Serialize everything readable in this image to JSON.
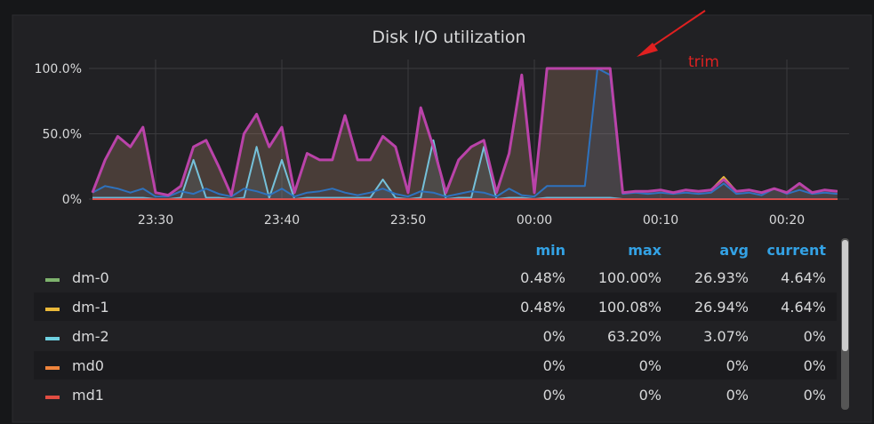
{
  "chart_data": {
    "type": "line",
    "title": "Disk I/O utilization",
    "annotation": "trim",
    "categories": [
      null,
      null,
      null,
      null,
      null,
      "23:30",
      null,
      null,
      null,
      null,
      null,
      null,
      null,
      null,
      null,
      "23:40",
      null,
      null,
      null,
      null,
      null,
      null,
      null,
      null,
      null,
      "23:50",
      null,
      null,
      null,
      null,
      null,
      null,
      null,
      null,
      null,
      "00:00",
      null,
      null,
      null,
      null,
      null,
      null,
      null,
      null,
      null,
      "00:10",
      null,
      null,
      null,
      null,
      null,
      null,
      null,
      null,
      null,
      "00:20",
      null,
      null,
      null,
      null
    ],
    "ylim": [
      0,
      100
    ],
    "yticks": [
      {
        "value": 0,
        "label": "0%"
      },
      {
        "value": 50,
        "label": "50.0%"
      },
      {
        "value": 100,
        "label": "100.0%"
      }
    ],
    "grid": true,
    "legend_columns": [
      "min",
      "max",
      "avg",
      "current"
    ],
    "series": [
      {
        "name": "dm-0",
        "color": "#7eb26d",
        "stats": [
          "0.48%",
          "100.00%",
          "26.93%",
          "4.64%"
        ],
        "values": [
          5,
          30,
          48,
          40,
          55,
          5,
          3,
          10,
          40,
          45,
          25,
          3,
          50,
          65,
          40,
          55,
          5,
          35,
          30,
          30,
          64,
          30,
          30,
          48,
          40,
          5,
          70,
          40,
          5,
          30,
          40,
          45,
          5,
          35,
          95,
          5,
          100,
          100,
          100,
          100,
          100,
          100,
          5,
          6,
          6,
          7,
          5,
          7,
          6,
          7,
          15,
          6,
          7,
          5,
          8,
          5,
          12,
          5,
          7,
          6
        ]
      },
      {
        "name": "dm-1",
        "color": "#eab839",
        "stats": [
          "0.48%",
          "100.08%",
          "26.94%",
          "4.64%"
        ],
        "values": [
          5,
          30,
          48,
          40,
          55,
          5,
          3,
          10,
          40,
          45,
          25,
          3,
          50,
          65,
          40,
          55,
          5,
          35,
          30,
          30,
          64,
          30,
          30,
          48,
          40,
          5,
          70,
          40,
          5,
          30,
          40,
          45,
          5,
          35,
          95,
          5,
          100,
          100,
          100,
          100,
          100,
          100,
          5,
          6,
          6,
          7,
          5,
          7,
          6,
          7,
          17,
          6,
          7,
          5,
          8,
          5,
          12,
          5,
          7,
          6
        ]
      },
      {
        "name": "dm-2",
        "color": "#6ed0e0",
        "stats": [
          "0%",
          "63.20%",
          "3.07%",
          "0%"
        ],
        "values": [
          1,
          1,
          1,
          1,
          1,
          0,
          0,
          1,
          30,
          1,
          1,
          0,
          1,
          40,
          1,
          30,
          0,
          1,
          1,
          1,
          1,
          1,
          1,
          15,
          1,
          0,
          1,
          45,
          0,
          1,
          1,
          40,
          0,
          1,
          1,
          0,
          1,
          1,
          1,
          1,
          1,
          1,
          0,
          0,
          0,
          0,
          0,
          0,
          0,
          0,
          0,
          0,
          0,
          0,
          0,
          0,
          0,
          0,
          0,
          0
        ]
      },
      {
        "name": "md0",
        "color": "#ef843c",
        "stats": [
          "0%",
          "0%",
          "0%",
          "0%"
        ],
        "values": [
          0,
          0,
          0,
          0,
          0,
          0,
          0,
          0,
          0,
          0,
          0,
          0,
          0,
          0,
          0,
          0,
          0,
          0,
          0,
          0,
          0,
          0,
          0,
          0,
          0,
          0,
          0,
          0,
          0,
          0,
          0,
          0,
          0,
          0,
          0,
          0,
          0,
          0,
          0,
          0,
          0,
          0,
          0,
          0,
          0,
          0,
          0,
          0,
          0,
          0,
          0,
          0,
          0,
          0,
          0,
          0,
          0,
          0,
          0,
          0
        ]
      },
      {
        "name": "md1",
        "color": "#e24d42",
        "stats": [
          "0%",
          "0%",
          "0%",
          "0%"
        ],
        "values": [
          0,
          0,
          0,
          0,
          0,
          0,
          0,
          0,
          0,
          0,
          0,
          0,
          0,
          0,
          0,
          0,
          0,
          0,
          0,
          0,
          0,
          0,
          0,
          0,
          0,
          0,
          0,
          0,
          0,
          0,
          0,
          0,
          0,
          0,
          0,
          0,
          0,
          0,
          0,
          0,
          0,
          0,
          0,
          0,
          0,
          0,
          0,
          0,
          0,
          0,
          0,
          0,
          0,
          0,
          0,
          0,
          0,
          0,
          0,
          0
        ]
      },
      {
        "color": "#1f78c1",
        "values": [
          5,
          10,
          8,
          5,
          8,
          2,
          2,
          6,
          4,
          8,
          4,
          2,
          8,
          6,
          3,
          8,
          2,
          5,
          6,
          8,
          5,
          3,
          5,
          8,
          4,
          2,
          6,
          5,
          2,
          4,
          6,
          5,
          2,
          8,
          3,
          2,
          10,
          10,
          10,
          10,
          100,
          95,
          4,
          5,
          4,
          5,
          4,
          5,
          4,
          5,
          12,
          4,
          5,
          3,
          8,
          4,
          7,
          4,
          5,
          4
        ]
      },
      {
        "color": "#ba43a9",
        "values": [
          5,
          30,
          48,
          40,
          55,
          5,
          3,
          10,
          40,
          45,
          25,
          3,
          50,
          65,
          40,
          55,
          5,
          35,
          30,
          30,
          64,
          30,
          30,
          48,
          40,
          5,
          70,
          40,
          5,
          30,
          40,
          45,
          5,
          35,
          95,
          5,
          100,
          100,
          100,
          100,
          100,
          100,
          5,
          6,
          6,
          7,
          5,
          7,
          6,
          7,
          15,
          6,
          7,
          5,
          8,
          5,
          12,
          5,
          7,
          6
        ]
      }
    ]
  }
}
